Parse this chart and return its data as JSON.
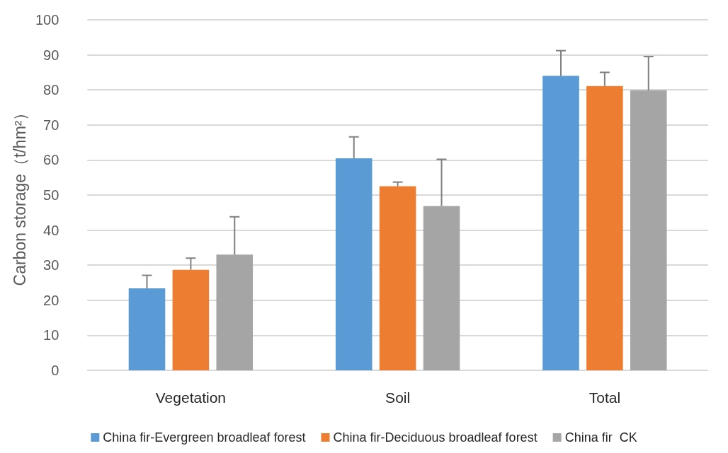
{
  "chart_data": {
    "type": "bar",
    "ylabel": "Carbon storage（t/hm²）",
    "categories": [
      "Vegetation",
      "Soil",
      "Total"
    ],
    "series": [
      {
        "name": "China fir-Evergreen broadleaf forest",
        "color": "#5b9bd5",
        "values": [
          23.4,
          60.5,
          84.0
        ],
        "errors": [
          [
            23.4,
            27.1
          ],
          [
            60.5,
            66.6
          ],
          [
            84.0,
            91.2
          ]
        ]
      },
      {
        "name": "China fir-Deciduous broadleaf forest",
        "color": "#ed7d31",
        "values": [
          28.7,
          52.5,
          81.1
        ],
        "errors": [
          [
            28.7,
            32.0
          ],
          [
            52.5,
            53.7
          ],
          [
            81.1,
            85.0
          ]
        ]
      },
      {
        "name": "China fir  CK",
        "color": "#a5a5a5",
        "values": [
          33.0,
          46.9,
          79.9
        ],
        "errors": [
          [
            33.0,
            43.8
          ],
          [
            46.9,
            60.2
          ],
          [
            79.9,
            89.5
          ]
        ]
      }
    ],
    "ylim": [
      0,
      100
    ],
    "yticks": [
      0,
      10,
      20,
      30,
      40,
      50,
      60,
      70,
      80,
      90,
      100
    ],
    "grid": "y",
    "legend": "bottom"
  }
}
